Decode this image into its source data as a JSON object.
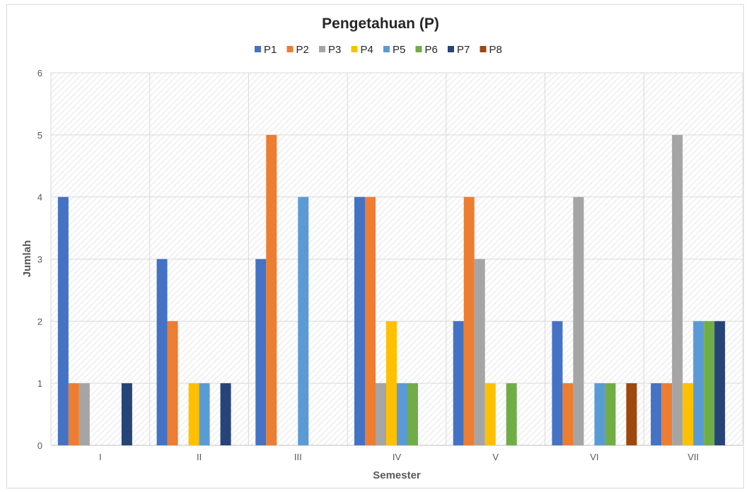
{
  "chart_data": {
    "type": "bar",
    "title": "Pengetahuan  (P)",
    "xlabel": "Semester",
    "ylabel": "Jumlah",
    "ylim": [
      0,
      6
    ],
    "yticks": [
      "0",
      "1",
      "2",
      "3",
      "4",
      "5",
      "6"
    ],
    "grid": true,
    "legend_position": "top",
    "categories": [
      "I",
      "II",
      "III",
      "IV",
      "V",
      "VI",
      "VII"
    ],
    "series": [
      {
        "name": "P1",
        "color": "#4472C4",
        "values": [
          4,
          3,
          3,
          4,
          2,
          2,
          1
        ]
      },
      {
        "name": "P2",
        "color": "#ED7D31",
        "values": [
          1,
          2,
          5,
          4,
          4,
          1,
          1
        ]
      },
      {
        "name": "P3",
        "color": "#A5A5A5",
        "values": [
          1,
          0,
          0,
          1,
          3,
          4,
          5
        ]
      },
      {
        "name": "P4",
        "color": "#FFC000",
        "values": [
          0,
          1,
          0,
          2,
          1,
          0,
          1
        ]
      },
      {
        "name": "P5",
        "color": "#5B9BD5",
        "values": [
          0,
          1,
          4,
          1,
          0,
          1,
          2
        ]
      },
      {
        "name": "P6",
        "color": "#70AD47",
        "values": [
          0,
          0,
          0,
          1,
          1,
          1,
          2
        ]
      },
      {
        "name": "P7",
        "color": "#264478",
        "values": [
          1,
          1,
          0,
          0,
          0,
          0,
          2
        ]
      },
      {
        "name": "P8",
        "color": "#9E480E",
        "values": [
          0,
          0,
          0,
          0,
          0,
          1,
          0
        ]
      }
    ]
  }
}
